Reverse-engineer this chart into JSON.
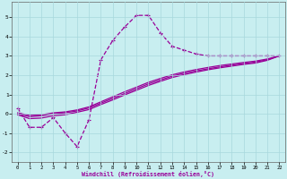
{
  "xlabel": "Windchill (Refroidissement éolien,°C)",
  "bg_color": "#c8eef0",
  "grid_color": "#a8d8dc",
  "line_color": "#990099",
  "xlim": [
    -0.5,
    22.5
  ],
  "ylim": [
    -2.5,
    5.8
  ],
  "xticks": [
    0,
    1,
    2,
    3,
    4,
    5,
    6,
    7,
    8,
    9,
    10,
    11,
    12,
    13,
    14,
    15,
    16,
    17,
    18,
    19,
    20,
    21,
    22
  ],
  "yticks": [
    -2,
    -1,
    0,
    1,
    2,
    3,
    4,
    5
  ],
  "line1_x": [
    0,
    1,
    2,
    3,
    4,
    5,
    6,
    7,
    8,
    9,
    10,
    11,
    12,
    13,
    14,
    15,
    16,
    17,
    18,
    19,
    20,
    21,
    22
  ],
  "line1_y": [
    0.3,
    -0.7,
    -0.7,
    -0.2,
    -1.0,
    -1.7,
    -0.3,
    2.8,
    3.8,
    4.5,
    5.1,
    5.1,
    4.2,
    3.5,
    3.3,
    3.1,
    3.0,
    3.0,
    3.0,
    3.0,
    3.0,
    3.0,
    3.0
  ],
  "line2_x": [
    0,
    1,
    2,
    3,
    4,
    5,
    6,
    7,
    8,
    9,
    10,
    11,
    12,
    13,
    14,
    15,
    16,
    17,
    18,
    19,
    20,
    21,
    22
  ],
  "line2_y": [
    0.0,
    -0.15,
    -0.1,
    0.0,
    0.05,
    0.15,
    0.3,
    0.55,
    0.8,
    1.05,
    1.3,
    1.55,
    1.75,
    1.95,
    2.1,
    2.22,
    2.33,
    2.43,
    2.52,
    2.6,
    2.68,
    2.8,
    3.0
  ],
  "line3_x": [
    0,
    1,
    2,
    3,
    4,
    5,
    6,
    7,
    8,
    9,
    10,
    11,
    12,
    13,
    14,
    15,
    16,
    17,
    18,
    19,
    20,
    21,
    22
  ],
  "line3_y": [
    -0.05,
    -0.25,
    -0.22,
    -0.1,
    -0.05,
    0.08,
    0.22,
    0.48,
    0.72,
    0.98,
    1.22,
    1.47,
    1.68,
    1.88,
    2.03,
    2.16,
    2.28,
    2.38,
    2.47,
    2.56,
    2.63,
    2.77,
    3.0
  ],
  "line4_x": [
    0,
    1,
    2,
    3,
    4,
    5,
    6,
    7,
    8,
    9,
    10,
    11,
    12,
    13,
    14,
    15,
    16,
    17,
    18,
    19,
    20,
    21,
    22
  ],
  "line4_y": [
    0.05,
    -0.08,
    -0.05,
    0.05,
    0.1,
    0.2,
    0.36,
    0.62,
    0.88,
    1.14,
    1.38,
    1.63,
    1.83,
    2.02,
    2.17,
    2.29,
    2.4,
    2.5,
    2.58,
    2.66,
    2.73,
    2.84,
    3.0
  ]
}
